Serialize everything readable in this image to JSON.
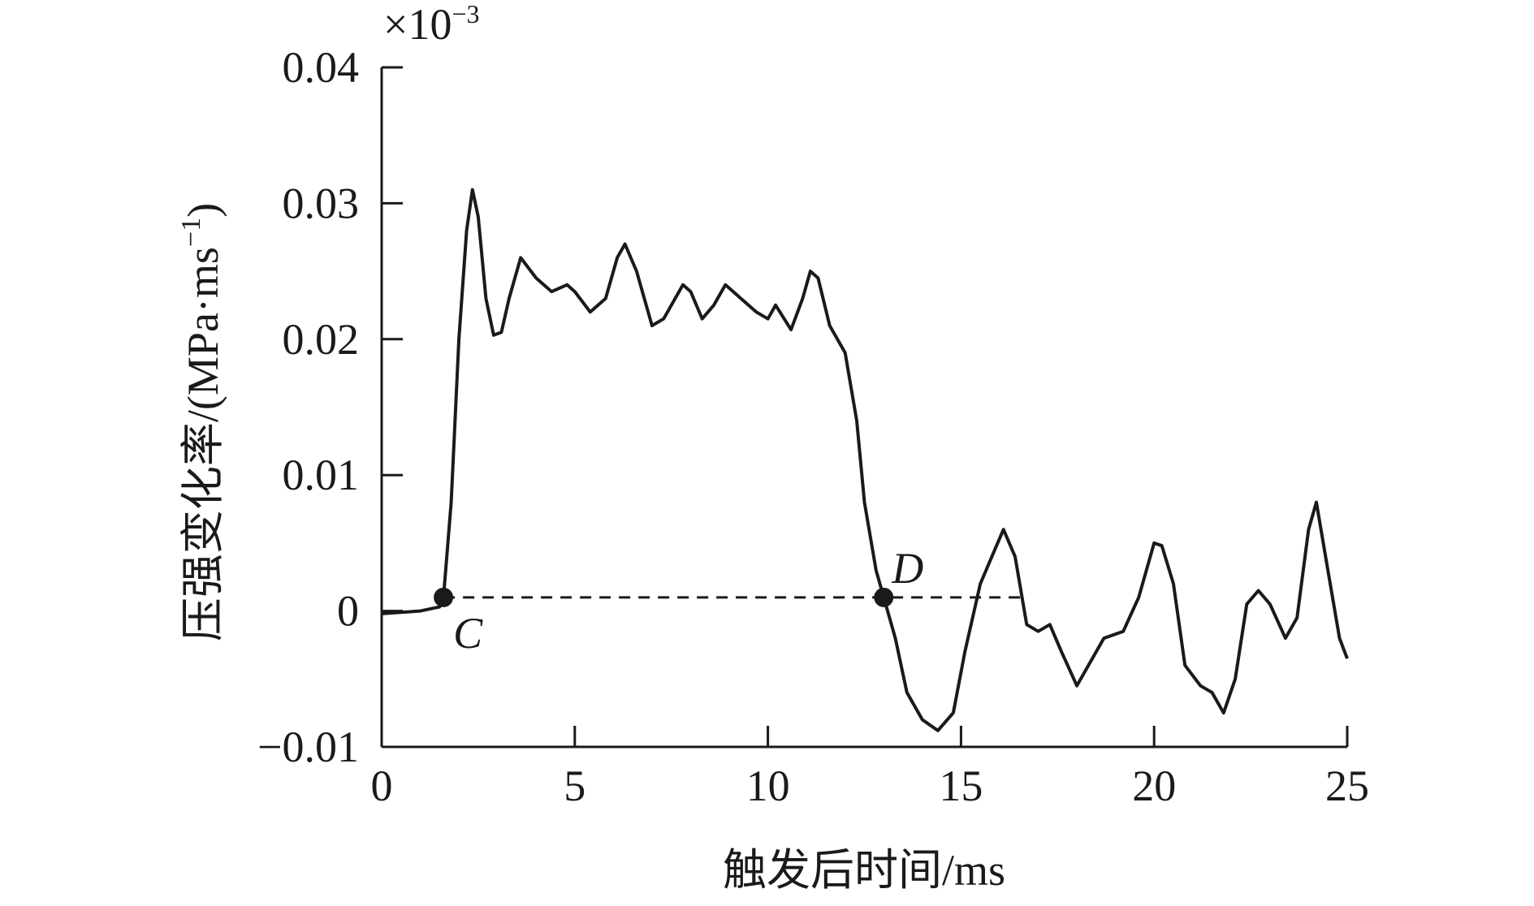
{
  "chart_data": {
    "type": "line",
    "ylabel": "压强变化率/(MPa·ms",
    "ylabel_sup": "−1",
    "ylabel_end": ")",
    "xlabel": "触发后时间/ms",
    "axis_multiplier": {
      "base": "×10",
      "exponent": "−3"
    },
    "xlim": [
      0,
      25
    ],
    "xticks": [
      0,
      5,
      10,
      15,
      20,
      25
    ],
    "ylim": [
      -0.01,
      0.04
    ],
    "yticks": [
      {
        "value": -0.01,
        "label": "−0.01"
      },
      0,
      0.01,
      0.02,
      0.03,
      0.04
    ],
    "series": [
      {
        "color": "#1a1a1a",
        "x": [
          0,
          0.5,
          1.0,
          1.5,
          1.6,
          1.8,
          2.0,
          2.2,
          2.35,
          2.5,
          2.7,
          2.9,
          3.1,
          3.3,
          3.6,
          4.0,
          4.4,
          4.8,
          5.0,
          5.4,
          5.8,
          6.1,
          6.3,
          6.6,
          7.0,
          7.3,
          7.8,
          8.0,
          8.3,
          8.6,
          8.9,
          9.3,
          9.7,
          10.0,
          10.2,
          10.6,
          10.9,
          11.1,
          11.3,
          11.6,
          12.0,
          12.3,
          12.5,
          12.8,
          13.0,
          13.3,
          13.6,
          14.0,
          14.4,
          14.8,
          15.1,
          15.5,
          15.8,
          16.1,
          16.4,
          16.7,
          17.0,
          17.3,
          17.6,
          18.0,
          18.3,
          18.7,
          19.2,
          19.6,
          20.0,
          20.2,
          20.5,
          20.8,
          21.2,
          21.5,
          21.8,
          22.1,
          22.4,
          22.7,
          23.0,
          23.4,
          23.7,
          24.0,
          24.2,
          24.5,
          24.8,
          25.0
        ],
        "values": [
          -0.0002,
          -0.0001,
          0.0,
          0.0003,
          0.001,
          0.008,
          0.02,
          0.028,
          0.031,
          0.029,
          0.023,
          0.0203,
          0.0205,
          0.023,
          0.026,
          0.0245,
          0.0235,
          0.024,
          0.0235,
          0.022,
          0.023,
          0.026,
          0.027,
          0.025,
          0.021,
          0.0215,
          0.024,
          0.0235,
          0.0215,
          0.0225,
          0.024,
          0.023,
          0.022,
          0.0215,
          0.0225,
          0.0207,
          0.023,
          0.025,
          0.0245,
          0.021,
          0.019,
          0.014,
          0.008,
          0.003,
          0.001,
          -0.002,
          -0.006,
          -0.008,
          -0.0088,
          -0.0075,
          -0.003,
          0.002,
          0.004,
          0.006,
          0.004,
          -0.001,
          -0.0015,
          -0.001,
          -0.003,
          -0.0055,
          -0.004,
          -0.002,
          -0.0015,
          0.001,
          0.005,
          0.0048,
          0.002,
          -0.004,
          -0.0055,
          -0.006,
          -0.0075,
          -0.005,
          0.0005,
          0.0015,
          0.0005,
          -0.002,
          -0.0005,
          0.006,
          0.008,
          0.003,
          -0.002,
          -0.0035
        ]
      }
    ],
    "points": [
      {
        "label": "C",
        "x": 1.6,
        "y": 0.001
      },
      {
        "label": "D",
        "x": 13.0,
        "y": 0.001
      }
    ],
    "dashed_line": {
      "y": 0.001,
      "x_start": 1.6,
      "x_end": 16.7
    }
  }
}
